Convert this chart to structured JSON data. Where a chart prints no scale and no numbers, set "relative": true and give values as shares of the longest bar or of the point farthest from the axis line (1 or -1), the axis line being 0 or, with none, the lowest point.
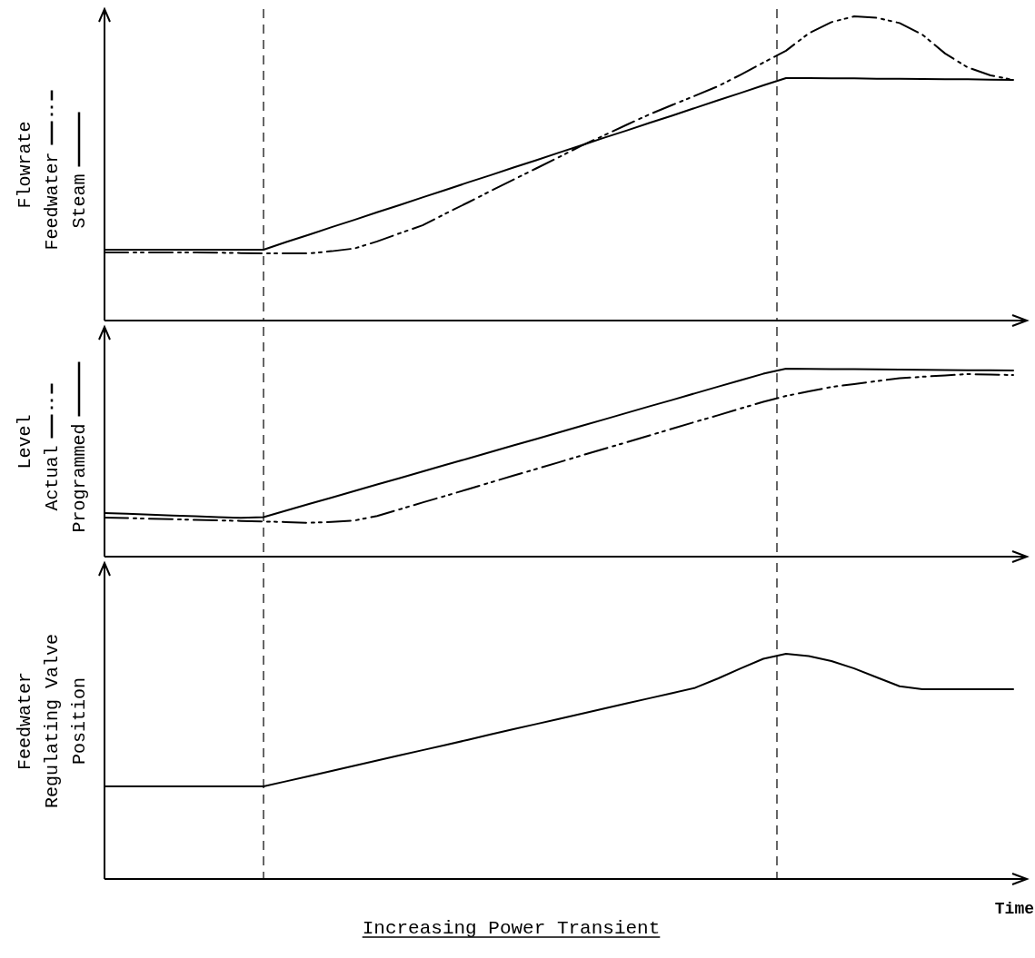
{
  "chart_data": [
    {
      "type": "line",
      "ylabel": "Flowrate",
      "relative": true,
      "legend": "left",
      "categories": [
        null,
        null,
        null,
        null,
        null,
        null,
        null,
        null,
        null,
        null,
        null,
        null,
        null,
        null,
        null,
        null,
        null,
        null,
        null,
        null,
        null,
        null,
        null,
        null,
        null,
        null,
        null,
        null,
        null,
        null,
        null,
        null,
        null,
        null,
        null,
        null,
        null,
        null,
        null,
        null,
        null
      ],
      "series": [
        {
          "name": "Feedwater",
          "color": "#000000",
          "line_style": "dashed",
          "values": [
            0.224,
            0.224,
            0.224,
            0.224,
            0.224,
            0.223,
            0.222,
            0.221,
            0.221,
            0.221,
            0.228,
            0.237,
            0.26,
            0.287,
            0.313,
            0.351,
            0.388,
            0.426,
            0.463,
            0.5,
            0.537,
            0.575,
            0.609,
            0.644,
            0.678,
            0.709,
            0.739,
            0.77,
            0.808,
            0.848,
            0.887,
            0.944,
            0.981,
            1.0,
            0.995,
            0.978,
            0.94,
            0.878,
            0.832,
            0.806,
            0.791
          ]
        },
        {
          "name": "Steam",
          "color": "#000000",
          "line_style": "solid",
          "values": [
            0.233,
            0.233,
            0.233,
            0.233,
            0.233,
            0.233,
            0.233,
            0.233,
            0.258,
            0.282,
            0.307,
            0.331,
            0.356,
            0.38,
            0.405,
            0.429,
            0.454,
            0.478,
            0.503,
            0.527,
            0.552,
            0.576,
            0.601,
            0.625,
            0.65,
            0.674,
            0.699,
            0.724,
            0.748,
            0.773,
            0.797,
            0.797,
            0.796,
            0.796,
            0.795,
            0.795,
            0.794,
            0.793,
            0.793,
            0.792,
            0.791
          ]
        }
      ]
    },
    {
      "type": "line",
      "ylabel": "Level",
      "relative": true,
      "legend": "left",
      "categories": [
        null,
        null,
        null,
        null,
        null,
        null,
        null,
        null,
        null,
        null,
        null,
        null,
        null,
        null,
        null,
        null,
        null,
        null,
        null,
        null,
        null,
        null,
        null,
        null,
        null,
        null,
        null,
        null,
        null,
        null,
        null,
        null,
        null,
        null,
        null,
        null,
        null,
        null,
        null,
        null,
        null
      ],
      "series": [
        {
          "name": "Actual",
          "color": "#000000",
          "line_style": "dashed",
          "values": [
            0.208,
            0.205,
            0.202,
            0.199,
            0.196,
            0.193,
            0.19,
            0.187,
            0.184,
            0.18,
            0.185,
            0.192,
            0.216,
            0.252,
            0.288,
            0.323,
            0.359,
            0.395,
            0.431,
            0.466,
            0.502,
            0.538,
            0.574,
            0.609,
            0.645,
            0.681,
            0.717,
            0.752,
            0.788,
            0.824,
            0.855,
            0.879,
            0.903,
            0.918,
            0.934,
            0.949,
            0.957,
            0.964,
            0.971,
            0.969,
            0.966
          ]
        },
        {
          "name": "Programmed",
          "color": "#000000",
          "line_style": "solid",
          "values": [
            0.232,
            0.228,
            0.223,
            0.219,
            0.215,
            0.21,
            0.206,
            0.21,
            0.245,
            0.28,
            0.314,
            0.349,
            0.384,
            0.418,
            0.453,
            0.488,
            0.522,
            0.557,
            0.592,
            0.626,
            0.661,
            0.696,
            0.73,
            0.765,
            0.8,
            0.834,
            0.869,
            0.904,
            0.938,
            0.973,
            1.0,
            0.999,
            0.998,
            0.997,
            0.996,
            0.995,
            0.994,
            0.993,
            0.992,
            0.991,
            0.99
          ]
        }
      ]
    },
    {
      "type": "line",
      "ylabel": "Feedwater\nRegulating Valve\nPosition",
      "xlabel": "Time",
      "relative": true,
      "categories": [
        null,
        null,
        null,
        null,
        null,
        null,
        null,
        null,
        null,
        null,
        null,
        null,
        null,
        null,
        null,
        null,
        null,
        null,
        null,
        null,
        null,
        null,
        null,
        null,
        null,
        null,
        null,
        null,
        null,
        null,
        null,
        null,
        null,
        null,
        null,
        null,
        null,
        null,
        null,
        null,
        null
      ],
      "series": [
        {
          "color": "#000000",
          "line_style": "solid",
          "values": [
            0.411,
            0.411,
            0.411,
            0.411,
            0.411,
            0.411,
            0.411,
            0.411,
            0.434,
            0.457,
            0.48,
            0.503,
            0.526,
            0.549,
            0.572,
            0.595,
            0.618,
            0.642,
            0.665,
            0.688,
            0.711,
            0.734,
            0.757,
            0.78,
            0.803,
            0.826,
            0.849,
            0.89,
            0.935,
            0.978,
            1.0,
            0.99,
            0.968,
            0.935,
            0.895,
            0.856,
            0.843,
            0.843,
            0.843,
            0.843,
            0.843
          ]
        }
      ],
      "annotations": [
        "Increasing Power Transient"
      ]
    }
  ]
}
